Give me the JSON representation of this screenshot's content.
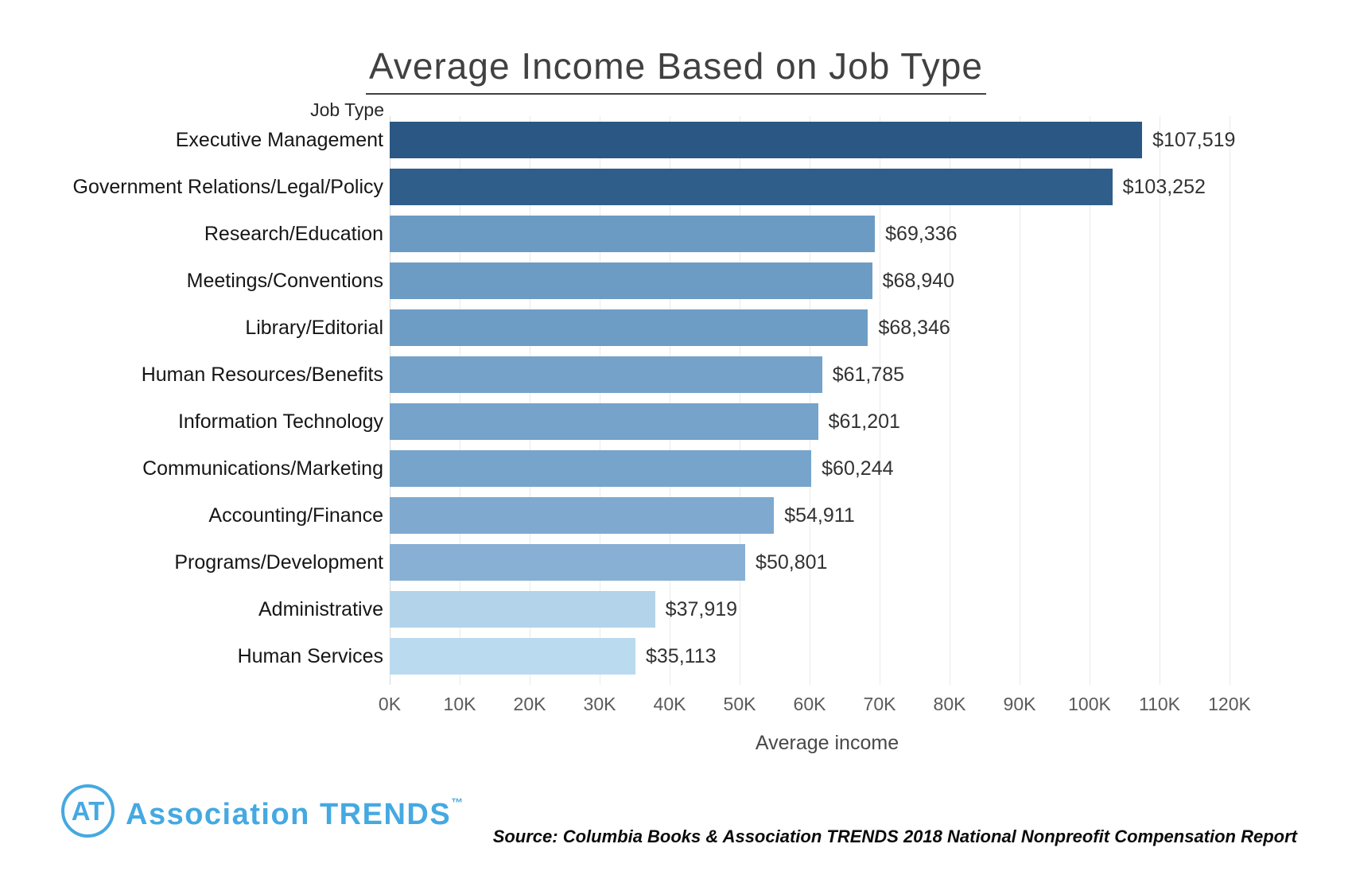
{
  "chart_data": {
    "type": "bar",
    "orientation": "horizontal",
    "title": "Average Income Based on Job Type",
    "ylabel": "Job Type",
    "xlabel": "Average income",
    "categories": [
      "Executive Management",
      "Government Relations/Legal/Policy",
      "Research/Education",
      "Meetings/Conventions",
      "Library/Editorial",
      "Human Resources/Benefits",
      "Information Technology",
      "Communications/Marketing",
      "Accounting/Finance",
      "Programs/Development",
      "Administrative",
      "Human Services"
    ],
    "values": [
      107519,
      103252,
      69336,
      68940,
      68346,
      61785,
      61201,
      60244,
      54911,
      50801,
      37919,
      35113
    ],
    "value_labels": [
      "$107,519",
      "$103,252",
      "$69,336",
      "$68,940",
      "$68,346",
      "$61,785",
      "$61,201",
      "$60,244",
      "$54,911",
      "$50,801",
      "$37,919",
      "$35,113"
    ],
    "bar_colors": [
      "#2a5783",
      "#305e8a",
      "#6b9bc3",
      "#6c9cc4",
      "#6d9dc5",
      "#74a2c9",
      "#75a3ca",
      "#77a4cb",
      "#7fa9cf",
      "#87b0d4",
      "#b3d3eb",
      "#badaf0"
    ],
    "x_ticks": [
      "0K",
      "10K",
      "20K",
      "30K",
      "40K",
      "50K",
      "60K",
      "70K",
      "80K",
      "90K",
      "100K",
      "110K",
      "120K"
    ],
    "x_tick_values": [
      0,
      10000,
      20000,
      30000,
      40000,
      50000,
      60000,
      70000,
      80000,
      90000,
      100000,
      110000,
      120000
    ],
    "xlim": [
      0,
      120000
    ],
    "grid": "vertical-only",
    "gridline_color": "#eaeaea",
    "legend": "none"
  },
  "footer": {
    "logo_monogram": "AT",
    "logo_text": "Association TRENDS",
    "logo_tm": "™",
    "logo_color": "#45a9e1",
    "source": "Source: Columbia Books & Association TRENDS 2018 National Nonpreofit Compensation Report"
  }
}
